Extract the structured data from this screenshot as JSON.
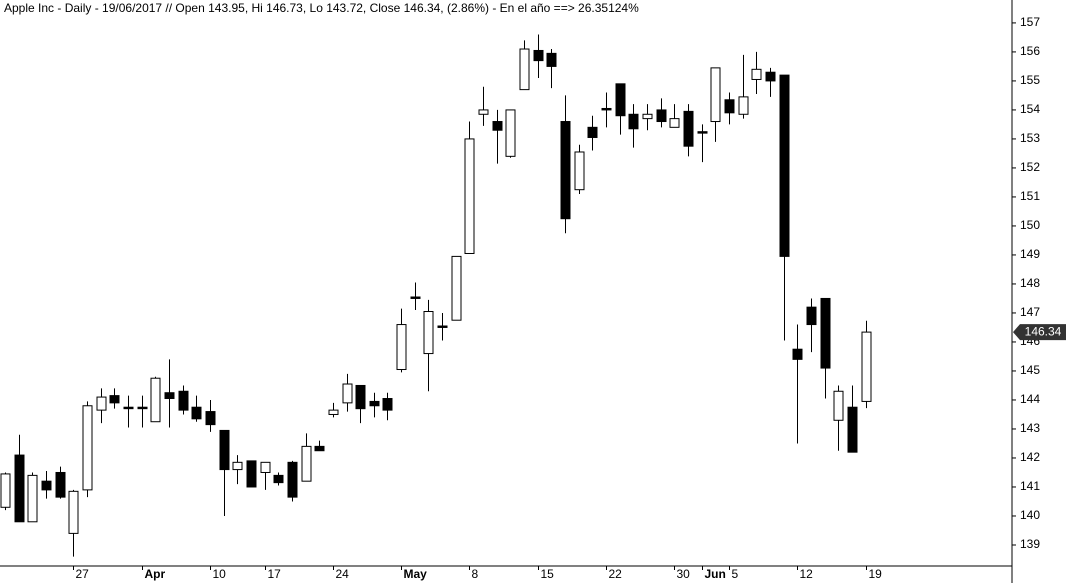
{
  "chart_data": {
    "type": "candlestick",
    "title": "Apple Inc - Daily - 19/06/2017 // Open 143.95, Hi 146.73, Lo 143.72, Close 146.34, (2.86%) - En el año ==> 26.35124%",
    "categories": [
      null,
      null,
      null,
      null,
      null,
      "27",
      null,
      null,
      null,
      null,
      "Apr",
      null,
      null,
      null,
      null,
      "10",
      null,
      null,
      null,
      "17",
      null,
      null,
      null,
      null,
      "24",
      null,
      null,
      null,
      null,
      "May",
      null,
      null,
      null,
      null,
      "8",
      null,
      null,
      null,
      null,
      "15",
      null,
      null,
      null,
      null,
      "22",
      null,
      null,
      null,
      null,
      "30",
      null,
      "Jun",
      null,
      "5",
      null,
      null,
      null,
      null,
      "12",
      null,
      null,
      null,
      null,
      "19"
    ],
    "open": [
      140.3,
      142.1,
      139.8,
      141.2,
      141.5,
      139.4,
      140.9,
      143.65,
      144.15,
      143.75,
      143.75,
      143.25,
      144.25,
      144.3,
      143.75,
      143.6,
      142.95,
      141.6,
      141.9,
      141.5,
      141.4,
      141.85,
      141.2,
      142.4,
      143.5,
      143.9,
      144.5,
      143.95,
      144.05,
      145.05,
      147.55,
      145.6,
      146.55,
      146.75,
      149.05,
      153.85,
      153.6,
      152.4,
      154.7,
      156.05,
      155.95,
      153.6,
      151.25,
      153.4,
      154.05,
      154.9,
      153.85,
      153.7,
      154.0,
      153.4,
      153.95,
      153.25,
      153.6,
      154.35,
      153.85,
      155.05,
      155.3,
      155.2,
      145.75,
      147.2,
      147.5,
      143.3,
      143.75,
      143.95
    ],
    "high": [
      141.5,
      142.8,
      141.5,
      141.55,
      141.7,
      140.9,
      143.95,
      144.4,
      144.4,
      144.15,
      144.15,
      144.8,
      145.4,
      144.5,
      144.15,
      144.0,
      142.95,
      142.1,
      141.9,
      141.85,
      141.5,
      141.9,
      142.85,
      142.6,
      143.9,
      144.9,
      144.5,
      144.25,
      144.25,
      147.15,
      148.05,
      147.45,
      147.0,
      148.95,
      153.6,
      154.8,
      154.0,
      154.0,
      156.4,
      156.6,
      156.1,
      154.5,
      152.8,
      153.8,
      154.6,
      154.9,
      154.2,
      154.2,
      154.4,
      154.2,
      154.2,
      153.5,
      155.45,
      154.6,
      155.9,
      156.0,
      155.45,
      155.2,
      146.6,
      147.5,
      147.5,
      144.5,
      144.5,
      146.73
    ],
    "low": [
      140.2,
      139.8,
      139.8,
      140.6,
      140.6,
      138.6,
      140.65,
      143.2,
      143.7,
      143.05,
      143.05,
      143.25,
      143.05,
      143.5,
      143.25,
      142.9,
      140.0,
      141.1,
      141.0,
      140.9,
      141.05,
      140.5,
      141.2,
      142.25,
      143.4,
      143.6,
      143.2,
      143.4,
      143.3,
      144.95,
      147.1,
      144.3,
      146.05,
      146.75,
      149.05,
      153.45,
      152.15,
      152.35,
      154.7,
      155.1,
      154.75,
      149.75,
      151.1,
      152.6,
      153.4,
      153.15,
      152.7,
      153.3,
      153.4,
      153.4,
      152.4,
      152.2,
      152.9,
      153.5,
      153.7,
      154.55,
      154.45,
      146.05,
      142.5,
      145.65,
      144.05,
      142.25,
      142.2,
      143.72
    ],
    "close": [
      141.45,
      139.8,
      141.4,
      140.9,
      140.65,
      140.85,
      143.8,
      144.1,
      143.9,
      143.7,
      143.7,
      144.75,
      144.05,
      143.65,
      143.35,
      143.15,
      141.6,
      141.85,
      141.0,
      141.85,
      141.15,
      140.65,
      142.4,
      142.25,
      143.65,
      144.55,
      143.7,
      143.8,
      143.65,
      146.6,
      147.5,
      147.05,
      146.5,
      148.95,
      153.0,
      154.0,
      153.3,
      154.0,
      156.1,
      155.7,
      155.5,
      150.25,
      152.55,
      153.05,
      154.0,
      153.8,
      153.35,
      153.85,
      153.6,
      153.7,
      152.75,
      153.2,
      155.45,
      153.9,
      154.45,
      155.4,
      155.0,
      148.95,
      145.4,
      146.6,
      145.1,
      144.3,
      142.2,
      146.34
    ],
    "up_color": "#ffffff",
    "down_color": "#000000",
    "ylim": [
      138.31,
      157.79
    ],
    "yticks": [
      139,
      140,
      141,
      142,
      143,
      144,
      145,
      146,
      147,
      148,
      149,
      150,
      151,
      152,
      153,
      154,
      155,
      156,
      157
    ]
  }
}
